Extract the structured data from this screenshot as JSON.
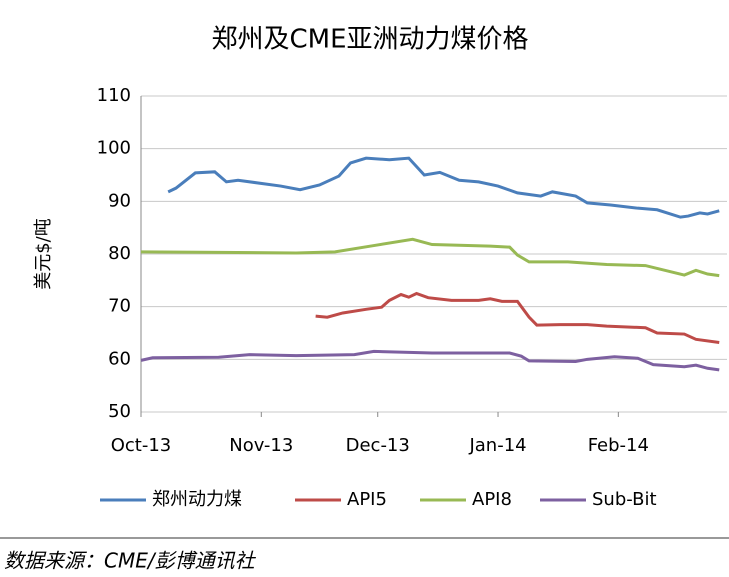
{
  "chart_data": {
    "type": "line",
    "title": "郑州及CME亚洲动力煤价格",
    "y_label": "美元$/吨",
    "source": "数据来源：CME/彭博通讯社",
    "xlim": [
      0,
      151
    ],
    "xticks": [
      {
        "value": 0,
        "label": "Oct-13"
      },
      {
        "value": 31,
        "label": "Nov-13"
      },
      {
        "value": 61,
        "label": "Dec-13"
      },
      {
        "value": 92,
        "label": "Jan-14"
      },
      {
        "value": 123,
        "label": "Feb-14"
      }
    ],
    "ylim": [
      50,
      110
    ],
    "yticks": [
      50,
      60,
      70,
      80,
      90,
      100,
      110
    ],
    "grid": true,
    "legend": "bottom",
    "series": [
      {
        "name": "郑州动力煤",
        "color": "#4a7ebb",
        "x": [
          7,
          9,
          14,
          19,
          22,
          25,
          36,
          41,
          46,
          51,
          54,
          58,
          64,
          69,
          73,
          77,
          82,
          87,
          92,
          97,
          103,
          106,
          112,
          115,
          121,
          128,
          133,
          139,
          141,
          144,
          146,
          149
        ],
        "values": [
          91.8,
          92.5,
          95.4,
          95.6,
          93.7,
          94,
          92.9,
          92.2,
          93.1,
          94.8,
          97.3,
          98.2,
          97.9,
          98.2,
          95,
          95.5,
          94,
          93.7,
          92.9,
          91.6,
          91,
          91.8,
          91,
          89.7,
          89.3,
          88.7,
          88.4,
          87,
          87.2,
          87.8,
          87.6,
          88.2
        ]
      },
      {
        "name": "API5",
        "color": "#be4b48",
        "x": [
          45,
          48,
          52,
          58,
          62,
          64,
          67,
          69,
          71,
          74,
          80,
          87,
          90,
          93,
          97,
          100,
          102,
          108,
          115,
          120,
          130,
          133,
          140,
          143,
          149
        ],
        "values": [
          68.2,
          68,
          68.8,
          69.5,
          69.9,
          71.2,
          72.3,
          71.8,
          72.5,
          71.7,
          71.2,
          71.2,
          71.5,
          71,
          71,
          68,
          66.5,
          66.6,
          66.6,
          66.3,
          66,
          65,
          64.8,
          63.8,
          63.2
        ]
      },
      {
        "name": "API8",
        "color": "#98b954",
        "x": [
          0,
          20,
          40,
          50,
          60,
          70,
          75,
          90,
          95,
          97,
          100,
          110,
          120,
          130,
          140,
          143,
          146,
          149
        ],
        "values": [
          80.4,
          80.3,
          80.2,
          80.4,
          81.6,
          82.8,
          81.8,
          81.5,
          81.3,
          79.8,
          78.5,
          78.5,
          78,
          77.8,
          76,
          76.9,
          76.2,
          75.9
        ]
      },
      {
        "name": "Sub-Bit",
        "color": "#7d60a0",
        "x": [
          0,
          3,
          20,
          28,
          40,
          55,
          60,
          75,
          95,
          98,
          100,
          112,
          115,
          122,
          128,
          132,
          140,
          143,
          146,
          149
        ],
        "values": [
          59.8,
          60.3,
          60.4,
          60.9,
          60.7,
          60.9,
          61.5,
          61.2,
          61.2,
          60.6,
          59.7,
          59.6,
          60,
          60.5,
          60.2,
          59,
          58.6,
          58.9,
          58.3,
          58
        ]
      }
    ]
  }
}
